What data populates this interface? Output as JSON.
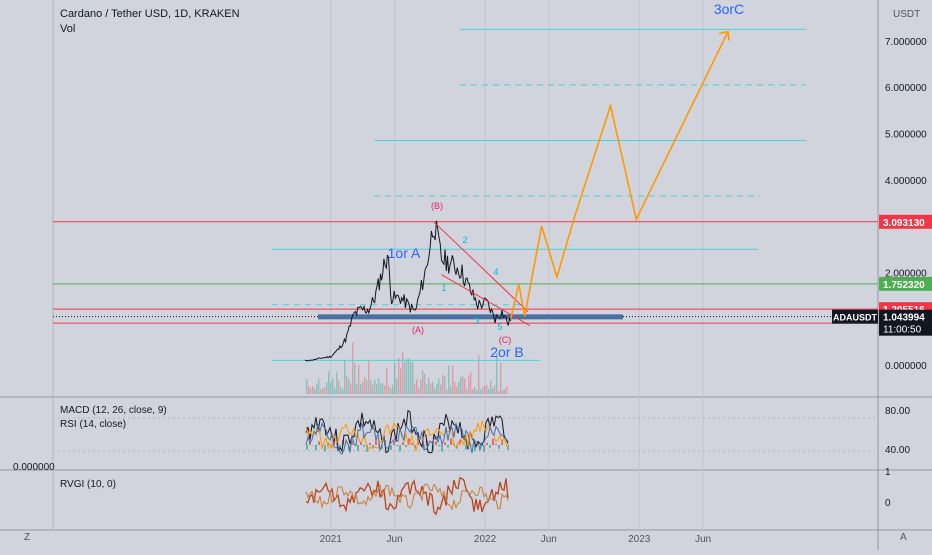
{
  "header": {
    "symbol_title": "Cardano / Tether USD, 1D, KRAKEN",
    "vol_label": "Vol",
    "currency": "USDT"
  },
  "panes": {
    "macd_label": "MACD (12, 26, close, 9)",
    "rsi_label": "RSI (14, close)",
    "rvgi_label": "RVGI (10, 0)",
    "left_value": "0.000000",
    "corner_left": "Z",
    "corner_right": "A"
  },
  "chart_data": {
    "type": "line",
    "series": [
      {
        "name": "ADAUSDT",
        "points": [
          [
            "2020-11-01",
            0.09
          ],
          [
            "2020-11-20",
            0.11
          ],
          [
            "2020-12-10",
            0.15
          ],
          [
            "2021-01-01",
            0.18
          ],
          [
            "2021-01-20",
            0.35
          ],
          [
            "2021-02-05",
            0.55
          ],
          [
            "2021-02-25",
            1.1
          ],
          [
            "2021-03-15",
            1.2
          ],
          [
            "2021-04-01",
            1.2
          ],
          [
            "2021-04-15",
            1.45
          ],
          [
            "2021-05-15",
            2.4
          ],
          [
            "2021-05-25",
            1.45
          ],
          [
            "2021-06-15",
            1.45
          ],
          [
            "2021-07-20",
            1.15
          ],
          [
            "2021-08-15",
            2.1
          ],
          [
            "2021-09-02",
            3.09
          ],
          [
            "2021-09-20",
            2.3
          ],
          [
            "2021-10-10",
            2.2
          ],
          [
            "2021-11-05",
            2.05
          ],
          [
            "2021-11-25",
            1.65
          ],
          [
            "2021-12-15",
            1.3
          ],
          [
            "2022-01-05",
            1.35
          ],
          [
            "2022-01-25",
            1.0
          ],
          [
            "2022-02-10",
            1.15
          ],
          [
            "2022-02-25",
            0.9
          ],
          [
            "2022-03-03",
            0.95
          ]
        ]
      }
    ],
    "projection": {
      "name": "Projection",
      "color": "#ff9800",
      "points": [
        [
          "2022-03-03",
          1.0
        ],
        [
          "2022-03-22",
          1.75
        ],
        [
          "2022-04-05",
          1.05
        ],
        [
          "2022-05-15",
          3.0
        ],
        [
          "2022-06-20",
          1.9
        ],
        [
          "2022-08-01",
          3.2
        ],
        [
          "2022-10-25",
          5.6
        ],
        [
          "2022-12-25",
          3.15
        ],
        [
          "2023-07-30",
          7.2
        ]
      ]
    },
    "horizontal_levels": [
      {
        "value": 3.09313,
        "color": "#f23645",
        "label": "3.093130"
      },
      {
        "value": 1.75232,
        "color": "#4caf50",
        "label": "1.752320"
      },
      {
        "value": 1.205516,
        "color": "#f23645",
        "label": "1.205516"
      },
      {
        "value": 1.043994,
        "color": "#000000",
        "label": "1.043994"
      },
      {
        "value": 0.903939,
        "color": "#f23645",
        "label": "0.903939"
      }
    ],
    "price_badge": {
      "symbol": "ADAUSDT",
      "value": "1.043994",
      "countdown": "11:00:50"
    },
    "annotations": {
      "wave_b": "(B)",
      "wave_a": "(A)",
      "wave_c": "(C)",
      "n1": "1",
      "n2": "2",
      "n3": "3",
      "n4": "4",
      "n5": "5",
      "one_or_a": "1or A",
      "two_or_b": "2or B",
      "three_or_c": "3orC"
    },
    "y_ticks": [
      "7.000000",
      "6.000000",
      "5.000000",
      "4.000000",
      "2.000000",
      "0.000000"
    ],
    "macd_ticks": [
      "80.00",
      "40.00"
    ],
    "rvgi_ticks": [
      "1",
      "0"
    ],
    "x_ticks": [
      {
        "date": "2021-01-01",
        "label": "2021"
      },
      {
        "date": "2021-06-01",
        "label": "Jun"
      },
      {
        "date": "2022-01-01",
        "label": "2022"
      },
      {
        "date": "2022-06-01",
        "label": "Jun"
      },
      {
        "date": "2023-01-01",
        "label": "2023"
      },
      {
        "date": "2023-06-01",
        "label": "Jun"
      }
    ]
  }
}
